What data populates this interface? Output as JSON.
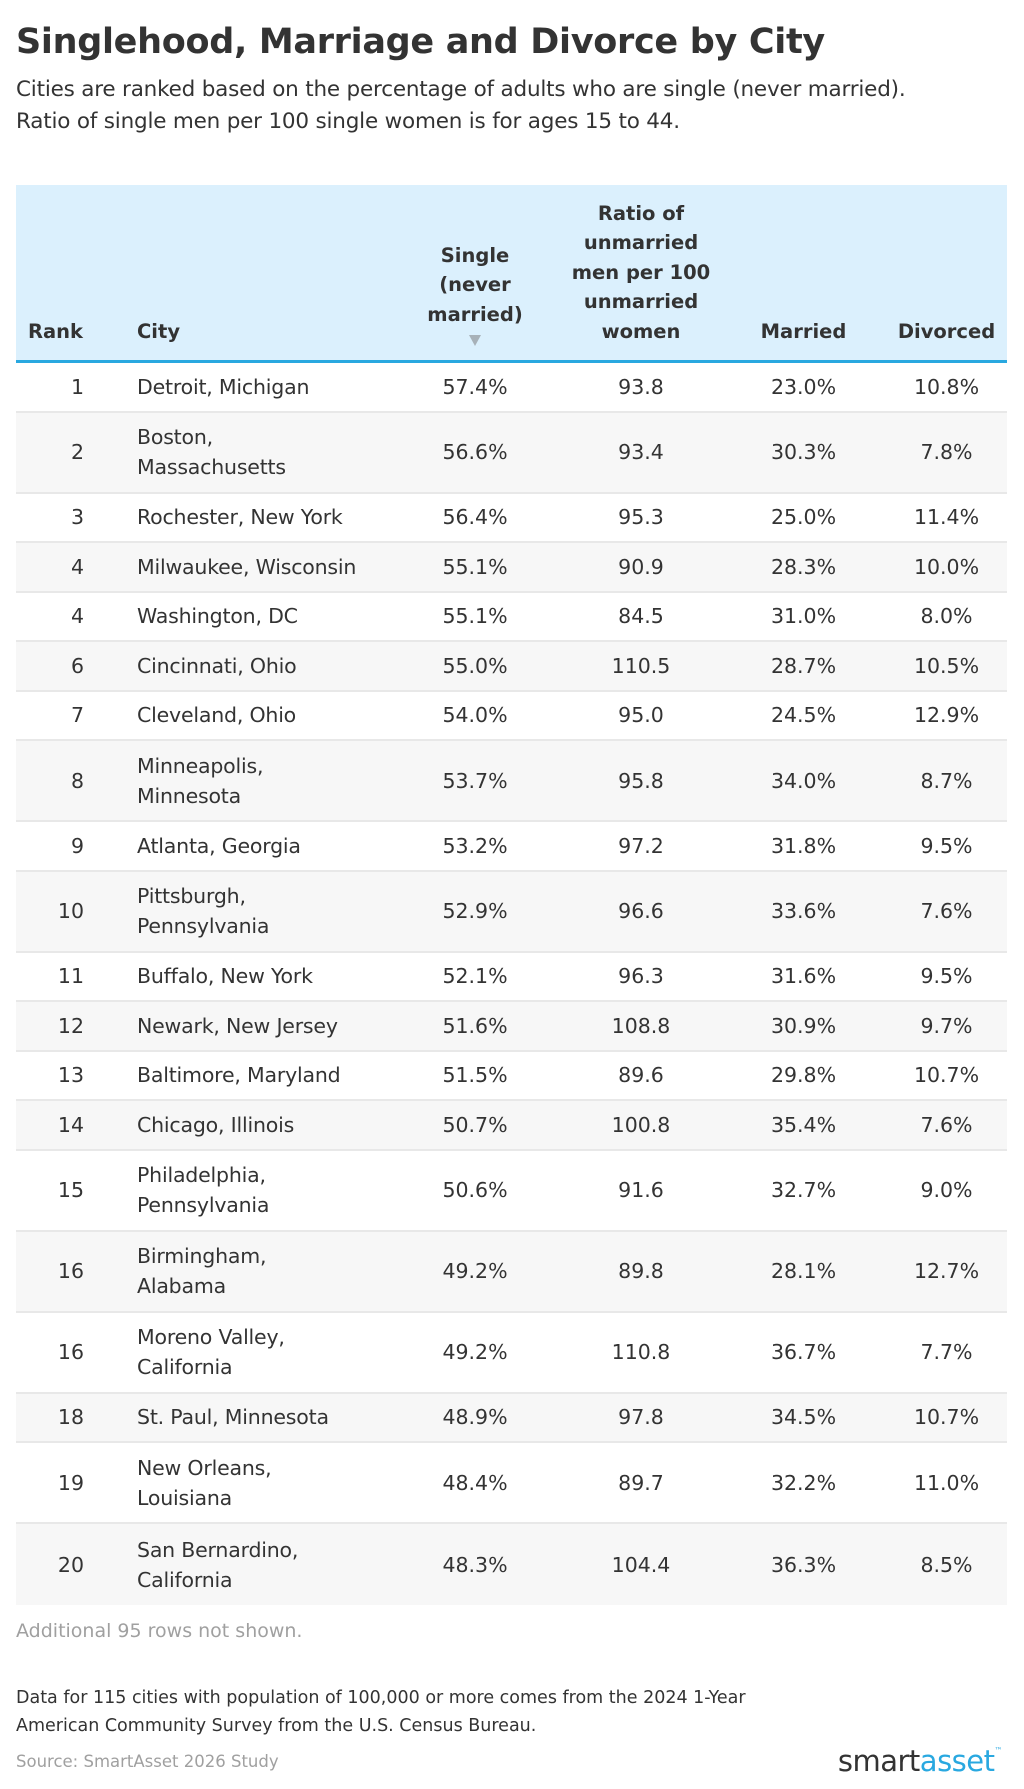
{
  "header": {
    "title": "Singlehood, Marriage and Divorce by City",
    "subtitle_lines": [
      "Cities are ranked based on the percentage of adults who are single (never married).",
      "Ratio of single men per 100 single women is for ages 15 to 44."
    ]
  },
  "table": {
    "columns": {
      "rank": "Rank",
      "city": "City",
      "single": [
        "Single",
        "(never",
        "married)"
      ],
      "ratio": [
        "Ratio of",
        "unmarried",
        "men per 100",
        "unmarried",
        "women"
      ],
      "married": "Married",
      "divorced": "Divorced"
    },
    "sort": {
      "column": "single",
      "direction": "descending",
      "icon": "sort-descending-icon",
      "color": "#a7b1b8"
    },
    "rows": [
      {
        "rank": "1",
        "city": "Detroit, Michigan",
        "single": "57.4%",
        "ratio": "93.8",
        "married": "23.0%",
        "divorced": "10.8%"
      },
      {
        "rank": "2",
        "city": "Boston, Massachusetts",
        "single": "56.6%",
        "ratio": "93.4",
        "married": "30.3%",
        "divorced": "7.8%"
      },
      {
        "rank": "3",
        "city": "Rochester, New York",
        "single": "56.4%",
        "ratio": "95.3",
        "married": "25.0%",
        "divorced": "11.4%"
      },
      {
        "rank": "4",
        "city": "Milwaukee, Wisconsin",
        "single": "55.1%",
        "ratio": "90.9",
        "married": "28.3%",
        "divorced": "10.0%"
      },
      {
        "rank": "4",
        "city": "Washington, DC",
        "single": "55.1%",
        "ratio": "84.5",
        "married": "31.0%",
        "divorced": "8.0%"
      },
      {
        "rank": "6",
        "city": "Cincinnati, Ohio",
        "single": "55.0%",
        "ratio": "110.5",
        "married": "28.7%",
        "divorced": "10.5%"
      },
      {
        "rank": "7",
        "city": "Cleveland, Ohio",
        "single": "54.0%",
        "ratio": "95.0",
        "married": "24.5%",
        "divorced": "12.9%"
      },
      {
        "rank": "8",
        "city": "Minneapolis, Minnesota",
        "single": "53.7%",
        "ratio": "95.8",
        "married": "34.0%",
        "divorced": "8.7%"
      },
      {
        "rank": "9",
        "city": "Atlanta, Georgia",
        "single": "53.2%",
        "ratio": "97.2",
        "married": "31.8%",
        "divorced": "9.5%"
      },
      {
        "rank": "10",
        "city": "Pittsburgh, Pennsylvania",
        "single": "52.9%",
        "ratio": "96.6",
        "married": "33.6%",
        "divorced": "7.6%"
      },
      {
        "rank": "11",
        "city": "Buffalo, New York",
        "single": "52.1%",
        "ratio": "96.3",
        "married": "31.6%",
        "divorced": "9.5%"
      },
      {
        "rank": "12",
        "city": "Newark, New Jersey",
        "single": "51.6%",
        "ratio": "108.8",
        "married": "30.9%",
        "divorced": "9.7%"
      },
      {
        "rank": "13",
        "city": "Baltimore, Maryland",
        "single": "51.5%",
        "ratio": "89.6",
        "married": "29.8%",
        "divorced": "10.7%"
      },
      {
        "rank": "14",
        "city": "Chicago, Illinois",
        "single": "50.7%",
        "ratio": "100.8",
        "married": "35.4%",
        "divorced": "7.6%"
      },
      {
        "rank": "15",
        "city": "Philadelphia, Pennsylvania",
        "single": "50.6%",
        "ratio": "91.6",
        "married": "32.7%",
        "divorced": "9.0%"
      },
      {
        "rank": "16",
        "city": "Birmingham, Alabama",
        "single": "49.2%",
        "ratio": "89.8",
        "married": "28.1%",
        "divorced": "12.7%"
      },
      {
        "rank": "16",
        "city": "Moreno Valley, California",
        "single": "49.2%",
        "ratio": "110.8",
        "married": "36.7%",
        "divorced": "7.7%"
      },
      {
        "rank": "18",
        "city": "St. Paul, Minnesota",
        "single": "48.9%",
        "ratio": "97.8",
        "married": "34.5%",
        "divorced": "10.7%"
      },
      {
        "rank": "19",
        "city": "New Orleans, Louisiana",
        "single": "48.4%",
        "ratio": "89.7",
        "married": "32.2%",
        "divorced": "11.0%"
      },
      {
        "rank": "20",
        "city": "San Bernardino, California",
        "single": "48.3%",
        "ratio": "104.4",
        "married": "36.3%",
        "divorced": "8.5%"
      }
    ],
    "city_display_lines": {
      "2": [
        "Boston,",
        "Massachusetts"
      ],
      "8": [
        "Minneapolis,",
        "Minnesota"
      ],
      "10": [
        "Pittsburgh,",
        "Pennsylvania"
      ],
      "15": [
        "Philadelphia,",
        "Pennsylvania"
      ],
      "16a": [
        "Birmingham,",
        "Alabama"
      ],
      "16b": [
        "Moreno Valley,",
        "California"
      ],
      "19": [
        "New Orleans,",
        "Louisiana"
      ],
      "20": [
        "San Bernardino,",
        "California"
      ]
    },
    "more_rows_note": "Additional 95 rows not shown."
  },
  "footer": {
    "note_lines": [
      "Data for 115 cities with population of 100,000 or more comes from the 2024 1-Year",
      "American Community Survey from the U.S. Census Bureau."
    ],
    "source": "Source: SmartAsset 2026 Study",
    "logo": {
      "part1": "smart",
      "part2": "asset",
      "tm": "™"
    }
  },
  "colors": {
    "header_bg": "#dbf0fd",
    "header_border": "#29a8e0",
    "stripe": "#f7f7f7",
    "row_divider": "#e8e8e8",
    "text": "#333333",
    "muted_text": "#a0a0a0",
    "brand_blue": "#29a8e0"
  },
  "chart_data": {
    "type": "table",
    "title": "Singlehood, Marriage and Divorce by City",
    "subtitle": "Cities are ranked based on the percentage of adults who are single (never married). Ratio of single men per 100 single women is for ages 15 to 44.",
    "columns": [
      "Rank",
      "City",
      "Single (never married)",
      "Ratio of unmarried men per 100 unmarried women",
      "Married",
      "Divorced"
    ],
    "sorted_by": "Single (never married)",
    "sort_order": "descending",
    "rows": [
      [
        1,
        "Detroit, Michigan",
        57.4,
        93.8,
        23.0,
        10.8
      ],
      [
        2,
        "Boston, Massachusetts",
        56.6,
        93.4,
        30.3,
        7.8
      ],
      [
        3,
        "Rochester, New York",
        56.4,
        95.3,
        25.0,
        11.4
      ],
      [
        4,
        "Milwaukee, Wisconsin",
        55.1,
        90.9,
        28.3,
        10.0
      ],
      [
        4,
        "Washington, DC",
        55.1,
        84.5,
        31.0,
        8.0
      ],
      [
        6,
        "Cincinnati, Ohio",
        55.0,
        110.5,
        28.7,
        10.5
      ],
      [
        7,
        "Cleveland, Ohio",
        54.0,
        95.0,
        24.5,
        12.9
      ],
      [
        8,
        "Minneapolis, Minnesota",
        53.7,
        95.8,
        34.0,
        8.7
      ],
      [
        9,
        "Atlanta, Georgia",
        53.2,
        97.2,
        31.8,
        9.5
      ],
      [
        10,
        "Pittsburgh, Pennsylvania",
        52.9,
        96.6,
        33.6,
        7.6
      ],
      [
        11,
        "Buffalo, New York",
        52.1,
        96.3,
        31.6,
        9.5
      ],
      [
        12,
        "Newark, New Jersey",
        51.6,
        108.8,
        30.9,
        9.7
      ],
      [
        13,
        "Baltimore, Maryland",
        51.5,
        89.6,
        29.8,
        10.7
      ],
      [
        14,
        "Chicago, Illinois",
        50.7,
        100.8,
        35.4,
        7.6
      ],
      [
        15,
        "Philadelphia, Pennsylvania",
        50.6,
        91.6,
        32.7,
        9.0
      ],
      [
        16,
        "Birmingham, Alabama",
        49.2,
        89.8,
        28.1,
        12.7
      ],
      [
        16,
        "Moreno Valley, California",
        49.2,
        110.8,
        36.7,
        7.7
      ],
      [
        18,
        "St. Paul, Minnesota",
        48.9,
        97.8,
        34.5,
        10.7
      ],
      [
        19,
        "New Orleans, Louisiana",
        48.4,
        89.7,
        32.2,
        11.0
      ],
      [
        20,
        "San Bernardino, California",
        48.3,
        104.4,
        36.3,
        8.5
      ]
    ],
    "units": {
      "Single (never married)": "%",
      "Married": "%",
      "Divorced": "%"
    },
    "notes": [
      "Additional 95 rows not shown.",
      "Data for 115 cities with population of 100,000 or more comes from the 2024 1-Year American Community Survey from the U.S. Census Bureau.",
      "Source: SmartAsset 2026 Study"
    ]
  }
}
